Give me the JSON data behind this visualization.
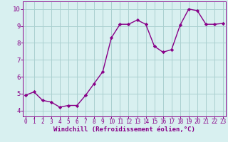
{
  "x": [
    0,
    1,
    2,
    3,
    4,
    5,
    6,
    7,
    8,
    9,
    10,
    11,
    12,
    13,
    14,
    15,
    16,
    17,
    18,
    19,
    20,
    21,
    22,
    23
  ],
  "y": [
    4.9,
    5.1,
    4.6,
    4.5,
    4.2,
    4.3,
    4.3,
    4.9,
    5.6,
    6.3,
    8.3,
    9.1,
    9.1,
    9.35,
    9.1,
    7.8,
    7.45,
    7.6,
    9.05,
    10.0,
    9.9,
    9.1,
    9.1,
    9.15
  ],
  "line_color": "#880088",
  "marker": "D",
  "marker_size": 2.2,
  "bg_color": "#d8f0f0",
  "grid_color": "#aacfcf",
  "xlabel": "Windchill (Refroidissement éolien,°C)",
  "yticks": [
    4,
    5,
    6,
    7,
    8,
    9,
    10
  ],
  "xticks": [
    0,
    1,
    2,
    3,
    4,
    5,
    6,
    7,
    8,
    9,
    10,
    11,
    12,
    13,
    14,
    15,
    16,
    17,
    18,
    19,
    20,
    21,
    22,
    23
  ],
  "xlim": [
    -0.3,
    23.3
  ],
  "ylim": [
    3.65,
    10.45
  ],
  "tick_color": "#880088",
  "spine_color": "#880088",
  "line_width": 1.0,
  "font_size_xlabel": 6.5,
  "font_size_ytick": 6.5,
  "font_size_xtick": 5.5
}
